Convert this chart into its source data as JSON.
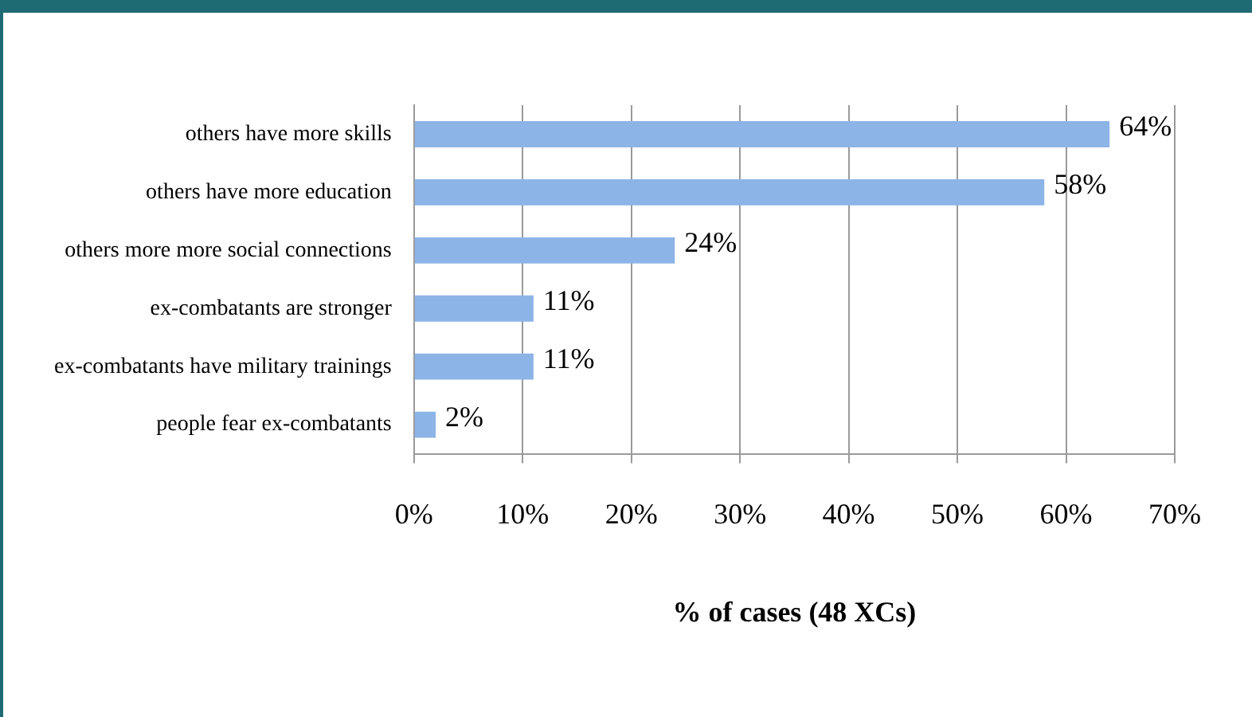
{
  "chart_data": {
    "type": "bar",
    "orientation": "horizontal",
    "xlabel": "% of cases (48 XCs)",
    "categories": [
      "others have more skills",
      "others have more education",
      "others more more social connections",
      "ex-combatants are stronger",
      "ex-combatants have military trainings",
      "people fear ex-combatants"
    ],
    "values": [
      64,
      58,
      24,
      11,
      11,
      2
    ],
    "value_labels": [
      "64%",
      "58%",
      "24%",
      "11%",
      "11%",
      "2%"
    ],
    "color": "#8db4e7",
    "xlim": [
      0,
      70
    ],
    "xticks": [
      {
        "value": 0,
        "label": "0%"
      },
      {
        "value": 10,
        "label": "10%"
      },
      {
        "value": 20,
        "label": "20%"
      },
      {
        "value": 30,
        "label": "30%"
      },
      {
        "value": 40,
        "label": "40%"
      },
      {
        "value": 50,
        "label": "50%"
      },
      {
        "value": 60,
        "label": "60%"
      },
      {
        "value": 70,
        "label": "70%"
      }
    ],
    "grid": "x",
    "legend": false
  }
}
